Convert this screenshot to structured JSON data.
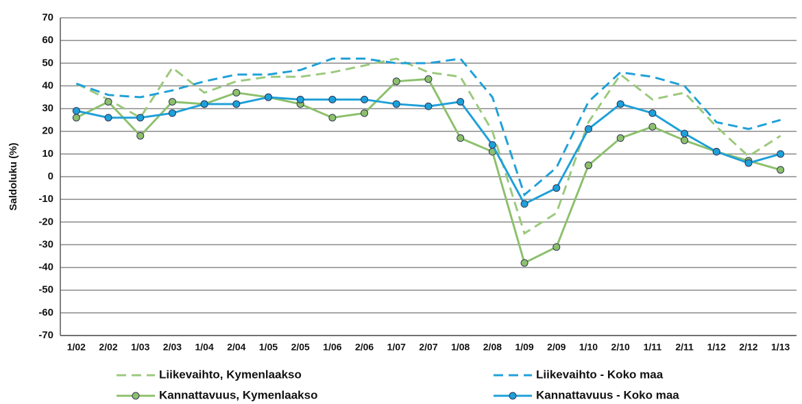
{
  "chart_data": {
    "type": "line",
    "y_label": "Saldoluku (%)",
    "categories": [
      "1/02",
      "2/02",
      "1/03",
      "2/03",
      "1/04",
      "2/04",
      "1/05",
      "2/05",
      "1/06",
      "2/06",
      "1/07",
      "2/07",
      "1/08",
      "2/08",
      "1/09",
      "2/09",
      "1/10",
      "2/10",
      "1/11",
      "2/11",
      "1/12",
      "2/12",
      "1/13"
    ],
    "series": [
      {
        "name": "Liikevaihto, Kymenlaakso",
        "color": "#9bc97c",
        "style": "dashed",
        "markers": false,
        "values": [
          41,
          34,
          26,
          48,
          37,
          42,
          44,
          44,
          46,
          49,
          52,
          46,
          44,
          20,
          -25,
          -16,
          24,
          45,
          34,
          37,
          22,
          9,
          18
        ]
      },
      {
        "name": "Liikevaihto - Koko maa",
        "color": "#1ea0d8",
        "style": "dashed",
        "markers": false,
        "values": [
          41,
          36,
          35,
          38,
          42,
          45,
          45,
          47,
          52,
          52,
          50,
          50,
          52,
          35,
          -8,
          4,
          33,
          46,
          44,
          40,
          24,
          21,
          25
        ]
      },
      {
        "name": "Kannattavuus, Kymenlaakso",
        "color": "#8cc06c",
        "style": "solid",
        "markers": true,
        "values": [
          26,
          33,
          18,
          33,
          32,
          37,
          35,
          32,
          26,
          28,
          42,
          43,
          17,
          11,
          -38,
          -31,
          5,
          17,
          22,
          16,
          11,
          7,
          3
        ]
      },
      {
        "name": "Kannattavuus - Koko maa",
        "color": "#1ea0d8",
        "style": "solid",
        "markers": true,
        "values": [
          29,
          26,
          26,
          28,
          32,
          32,
          35,
          34,
          34,
          34,
          32,
          31,
          33,
          14,
          -12,
          -5,
          21,
          32,
          28,
          19,
          11,
          6,
          10
        ]
      }
    ],
    "ylim": [
      -70,
      70
    ],
    "yticks": [
      -70,
      -60,
      -50,
      -40,
      -30,
      -20,
      -10,
      0,
      10,
      20,
      30,
      40,
      50,
      60,
      70
    ],
    "grid": true
  }
}
